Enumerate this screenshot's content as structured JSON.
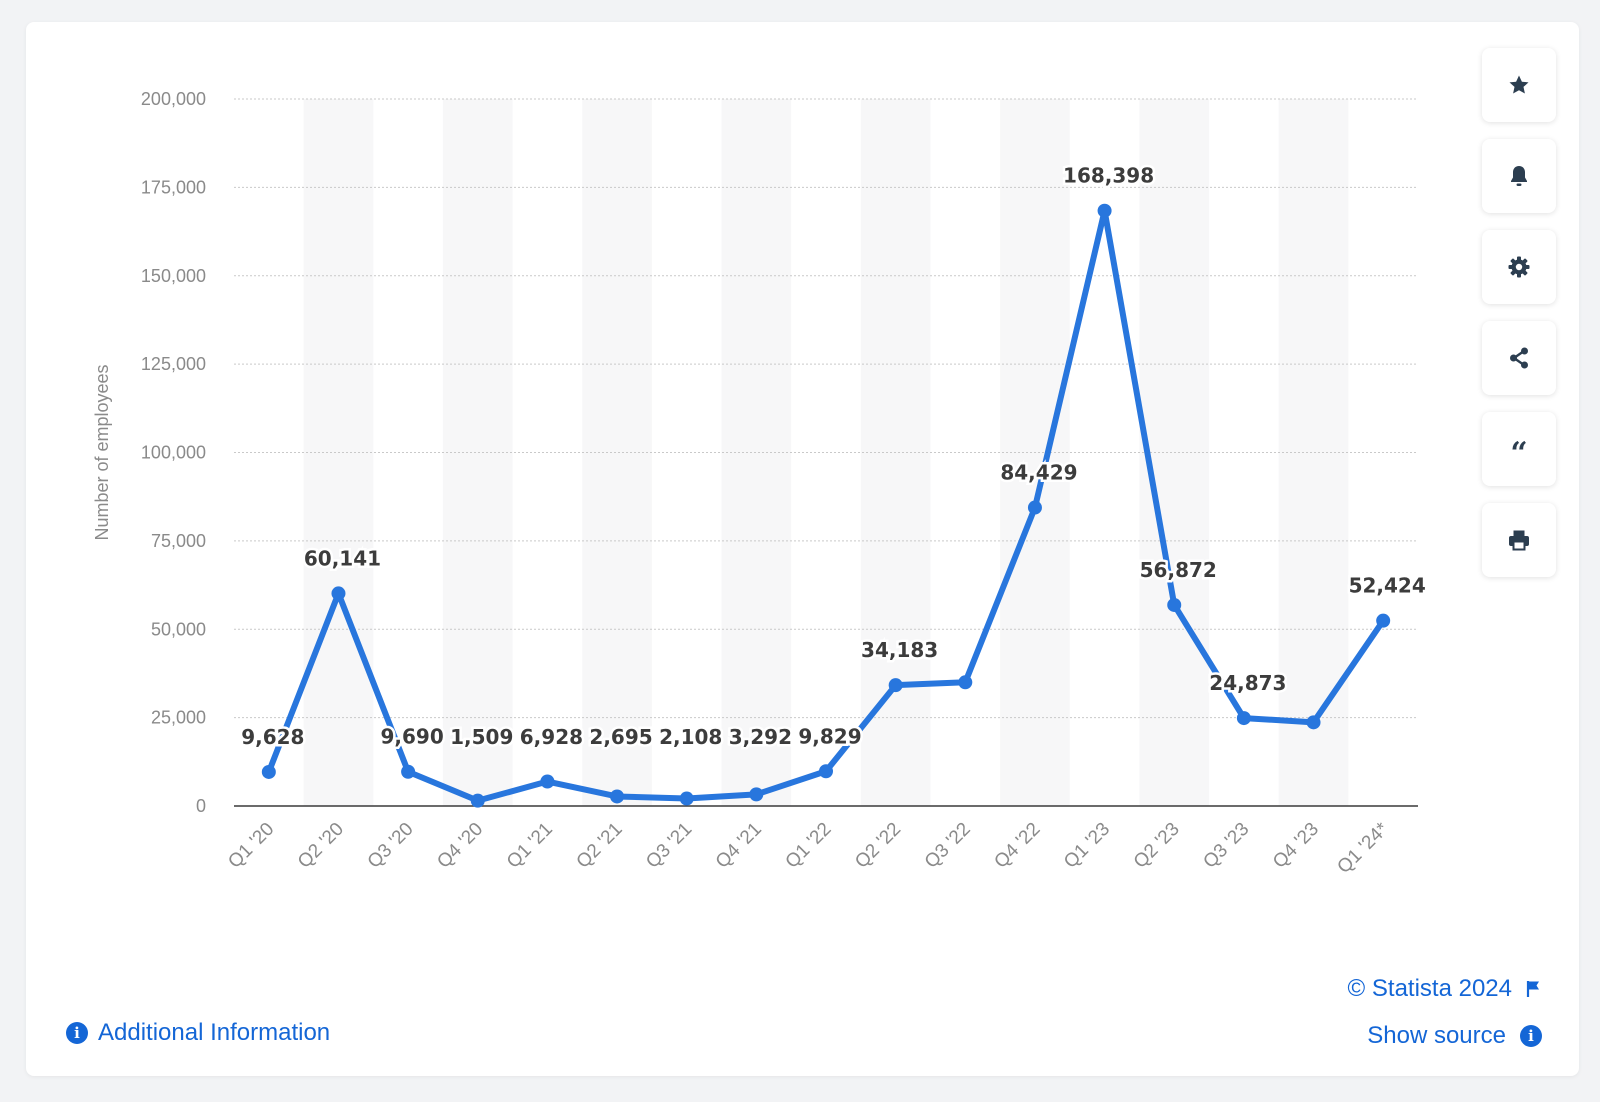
{
  "chart_data": {
    "type": "line",
    "ylabel": "Number of employees",
    "xlabel": "",
    "ylim": [
      0,
      200000
    ],
    "yticks": [
      0,
      25000,
      50000,
      75000,
      100000,
      125000,
      150000,
      175000,
      200000
    ],
    "ytick_labels": [
      "0",
      "25,000",
      "50,000",
      "75,000",
      "100,000",
      "125,000",
      "150,000",
      "175,000",
      "200,000"
    ],
    "categories": [
      "Q1 '20",
      "Q2 '20",
      "Q3 '20",
      "Q4 '20",
      "Q1 '21",
      "Q2 '21",
      "Q3 '21",
      "Q4 '21",
      "Q1 '22",
      "Q2 '22",
      "Q3 '22",
      "Q4 '22",
      "Q1 '23",
      "Q2 '23",
      "Q3 '23",
      "Q4 '23",
      "Q1 '24*"
    ],
    "values": [
      9628,
      60141,
      9690,
      1509,
      6928,
      2695,
      2108,
      3292,
      9829,
      34183,
      35000,
      84429,
      168398,
      56872,
      24873,
      23670,
      52424
    ],
    "data_labels": [
      "9,628",
      "60,141",
      "9,690",
      "1,509",
      "6,928",
      "2,695",
      "2,108",
      "3,292",
      "9,829",
      "34,183",
      "",
      "84,429",
      "168,398",
      "56,872",
      "24,873",
      "",
      "52,424"
    ],
    "grid": true,
    "alternating_column_bands": true,
    "line_color": "#2876dd"
  },
  "colors": {
    "accent": "#1466d6",
    "line": "#2876dd",
    "axis_text": "#8a8a8a",
    "label_text": "#3c3c3c",
    "tool_icon": "#2c3e50"
  },
  "toolbar": [
    {
      "name": "favorite-button",
      "icon": "star-icon"
    },
    {
      "name": "notification-button",
      "icon": "bell-icon"
    },
    {
      "name": "settings-button",
      "icon": "gear-icon"
    },
    {
      "name": "share-button",
      "icon": "share-icon"
    },
    {
      "name": "cite-button",
      "icon": "quote-icon"
    },
    {
      "name": "print-button",
      "icon": "printer-icon"
    }
  ],
  "footer": {
    "additional_info": "Additional Information",
    "copyright": "© Statista 2024",
    "show_source": "Show source"
  }
}
